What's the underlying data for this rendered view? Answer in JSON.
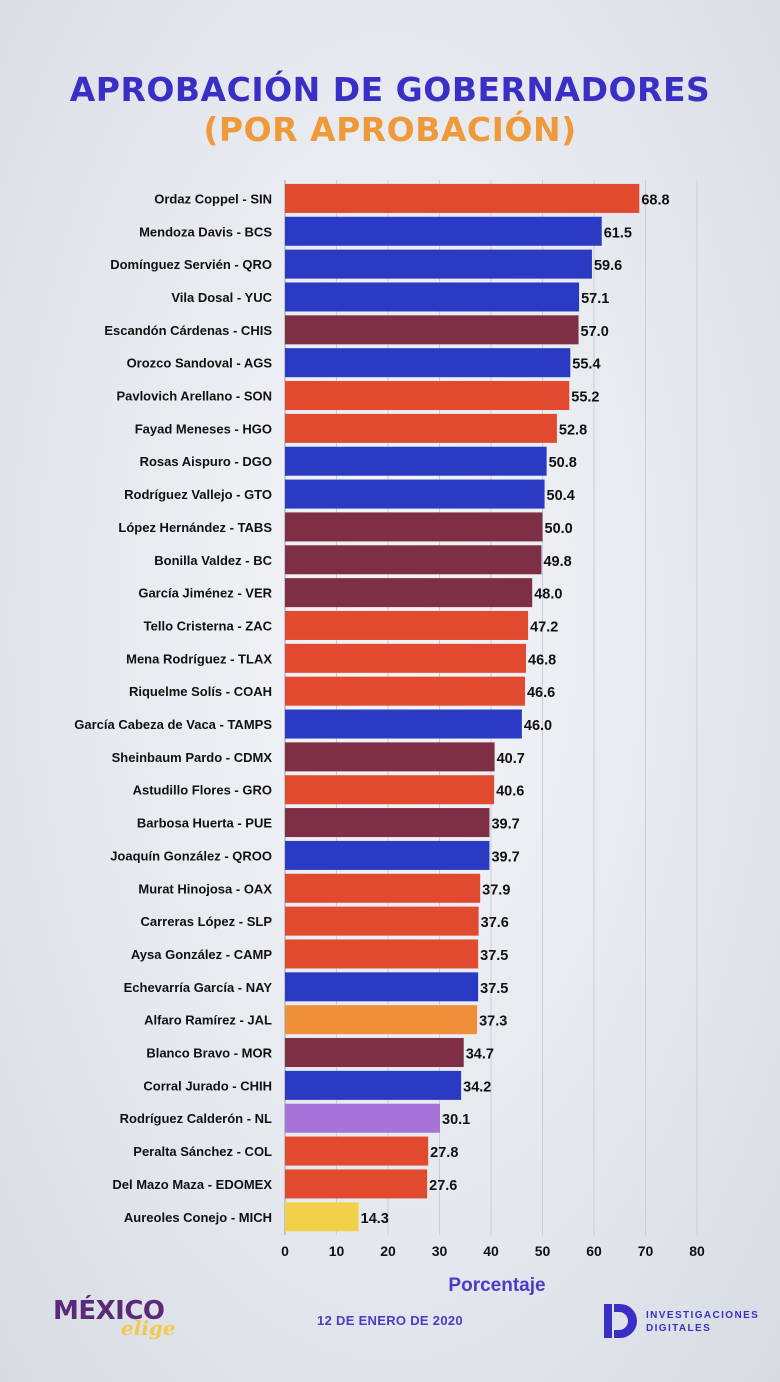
{
  "header": {
    "title": "APROBACIÓN DE GOBERNADORES",
    "subtitle": "(POR APROBACIÓN)"
  },
  "colors": {
    "title": "#3a2fc4",
    "subtitle": "#ef9a3a",
    "PRI": "#e14a2f",
    "PAN": "#2a3ac2",
    "MORENA": "#7e2f45",
    "MC": "#ef8f3a",
    "IND": "#a674d9",
    "PRD": "#f2d14a",
    "axis_label": "#4b3cc8"
  },
  "chart_data": {
    "type": "bar",
    "orientation": "horizontal",
    "title": "APROBACIÓN DE GOBERNADORES",
    "subtitle": "(POR APROBACIÓN)",
    "xlabel": "Porcentaje",
    "ylabel": "",
    "xlim": [
      0,
      80
    ],
    "xticks": [
      "0",
      "10",
      "20",
      "30",
      "40",
      "50",
      "60",
      "70",
      "80"
    ],
    "grid": "vertical",
    "legend": "none",
    "categories": [
      "Ordaz Coppel - SIN",
      "Mendoza Davis - BCS",
      "Domínguez Servién - QRO",
      "Vila Dosal - YUC",
      "Escandón Cárdenas - CHIS",
      "Orozco Sandoval - AGS",
      "Pavlovich Arellano - SON",
      "Fayad Meneses - HGO",
      "Rosas Aispuro - DGO",
      "Rodríguez Vallejo - GTO",
      "López Hernández - TABS",
      "Bonilla Valdez - BC",
      "García Jiménez - VER",
      "Tello Cristerna - ZAC",
      "Mena Rodríguez - TLAX",
      "Riquelme Solís - COAH",
      "García Cabeza de Vaca - TAMPS",
      "Sheinbaum Pardo - CDMX",
      "Astudillo Flores - GRO",
      "Barbosa Huerta - PUE",
      "Joaquín González - QROO",
      "Murat Hinojosa - OAX",
      "Carreras López - SLP",
      "Aysa González - CAMP",
      "Echevarría García - NAY",
      "Alfaro Ramírez - JAL",
      "Blanco Bravo - MOR",
      "Corral Jurado - CHIH",
      "Rodríguez Calderón - NL",
      "Peralta Sánchez - COL",
      "Del Mazo Maza - EDOMEX",
      "Aureoles Conejo - MICH"
    ],
    "values": [
      68.8,
      61.5,
      59.6,
      57.1,
      57.0,
      55.4,
      55.2,
      52.8,
      50.8,
      50.4,
      50.0,
      49.8,
      48.0,
      47.2,
      46.8,
      46.6,
      46.0,
      40.7,
      40.6,
      39.7,
      39.7,
      37.9,
      37.6,
      37.5,
      37.5,
      37.3,
      34.7,
      34.2,
      30.1,
      27.8,
      27.6,
      14.3
    ],
    "value_labels": [
      "68.8",
      "61.5",
      "59.6",
      "57.1",
      "57.0",
      "55.4",
      "55.2",
      "52.8",
      "50.8",
      "50.4",
      "50.0",
      "49.8",
      "48.0",
      "47.2",
      "46.8",
      "46.6",
      "46.0",
      "40.7",
      "40.6",
      "39.7",
      "39.7",
      "37.9",
      "37.6",
      "37.5",
      "37.5",
      "37.3",
      "34.7",
      "34.2",
      "30.1",
      "27.8",
      "27.6",
      "14.3"
    ],
    "bar_colors": [
      "#e14a2f",
      "#2a3ac2",
      "#2a3ac2",
      "#2a3ac2",
      "#7e2f45",
      "#2a3ac2",
      "#e14a2f",
      "#e14a2f",
      "#2a3ac2",
      "#2a3ac2",
      "#7e2f45",
      "#7e2f45",
      "#7e2f45",
      "#e14a2f",
      "#e14a2f",
      "#e14a2f",
      "#2a3ac2",
      "#7e2f45",
      "#e14a2f",
      "#7e2f45",
      "#2a3ac2",
      "#e14a2f",
      "#e14a2f",
      "#e14a2f",
      "#2a3ac2",
      "#ef8f3a",
      "#7e2f45",
      "#2a3ac2",
      "#a674d9",
      "#e14a2f",
      "#e14a2f",
      "#f2d14a"
    ]
  },
  "footer": {
    "date": "12 DE ENERO DE 2020",
    "logo_left": {
      "word": "MÉXICO",
      "script": "elige"
    },
    "logo_right": {
      "line1": "INVESTIGACIONES",
      "line2": "DIGITALES"
    }
  }
}
